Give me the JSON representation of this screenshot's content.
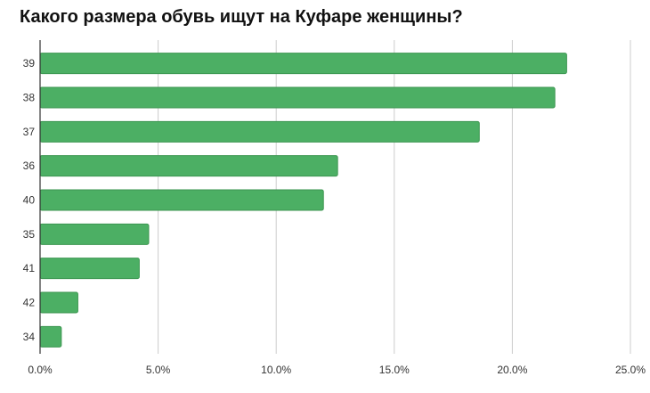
{
  "chart_data": {
    "type": "bar",
    "orientation": "horizontal",
    "title": "Какого размера обувь ищут на Куфаре женщины?",
    "categories": [
      "39",
      "38",
      "37",
      "36",
      "40",
      "35",
      "41",
      "42",
      "34"
    ],
    "values": [
      22.3,
      21.8,
      18.6,
      12.6,
      12.0,
      4.6,
      4.2,
      1.6,
      0.9
    ],
    "xlim": [
      0,
      25
    ],
    "xticks": [
      0,
      5,
      10,
      15,
      20,
      25
    ],
    "xtick_labels": [
      "0.0%",
      "5.0%",
      "10.0%",
      "15.0%",
      "20.0%",
      "25.0%"
    ],
    "xlabel": "",
    "ylabel": "",
    "grid": "vertical",
    "legend": "none",
    "bar_color": "#4caf64",
    "bar_border_color": "#3d9651",
    "grid_color": "#cccccc",
    "axis_color": "#333333"
  }
}
